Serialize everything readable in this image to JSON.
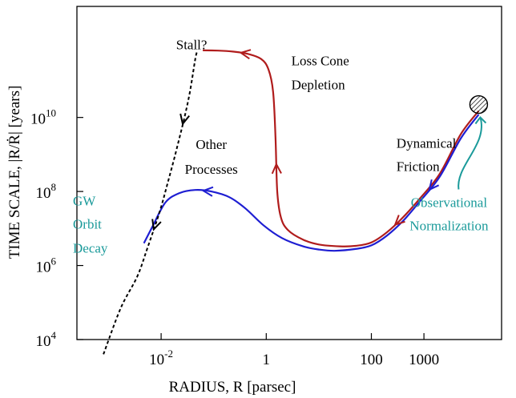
{
  "chart_data": {
    "type": "line",
    "title": "",
    "xlabel": "RADIUS, R  [parsec]",
    "ylabel_prefix": "TIME  SCALE,  |R/",
    "ylabel_rdot": "Ṙ",
    "ylabel_suffix": "|  [years]",
    "x_scale": "log",
    "y_scale": "log",
    "xlim": [
      0.00025,
      30000
    ],
    "ylim": [
      10000,
      10000000000000
    ],
    "x_ticks": [
      {
        "value": 0.01,
        "base": "10",
        "exp": "-2"
      },
      {
        "value": 1,
        "base": "1",
        "exp": ""
      },
      {
        "value": 100,
        "base": "100",
        "exp": ""
      },
      {
        "value": 1000,
        "base": "1000",
        "exp": ""
      }
    ],
    "y_ticks": [
      {
        "value": 10000,
        "base": "10",
        "exp": "4"
      },
      {
        "value": 1000000,
        "base": "10",
        "exp": "6"
      },
      {
        "value": 100000000,
        "base": "10",
        "exp": "8"
      },
      {
        "value": 10000000000,
        "base": "10",
        "exp": "10"
      }
    ],
    "series": [
      {
        "color": "#b01c1c",
        "style": "solid",
        "points": [
          [
            0.062,
            650000000000
          ],
          [
            0.12,
            640000000000
          ],
          [
            0.24,
            600000000000
          ],
          [
            0.45,
            520000000000
          ],
          [
            0.8,
            380000000000
          ],
          [
            1.1,
            200000000000
          ],
          [
            1.35,
            50000000000
          ],
          [
            1.5,
            3000000000
          ],
          [
            1.62,
            100000000
          ],
          [
            1.9,
            20000000
          ],
          [
            2.6,
            9000000
          ],
          [
            5,
            5000000
          ],
          [
            10,
            3700000
          ],
          [
            25,
            3300000
          ],
          [
            50,
            3400000
          ],
          [
            100,
            4200000
          ],
          [
            200,
            8000000
          ],
          [
            400,
            20000000
          ],
          [
            800,
            60000000
          ],
          [
            2000,
            300000000
          ],
          [
            5000,
            3500000000
          ],
          [
            11000,
            15000000000
          ]
        ]
      },
      {
        "color": "#1e1ed2",
        "style": "solid",
        "points": [
          [
            0.0047,
            4000000
          ],
          [
            0.007,
            12000000
          ],
          [
            0.012,
            50000000
          ],
          [
            0.022,
            90000000
          ],
          [
            0.045,
            110000000
          ],
          [
            0.09,
            100000000
          ],
          [
            0.2,
            70000000
          ],
          [
            0.4,
            35000000
          ],
          [
            0.9,
            12000000
          ],
          [
            2,
            5500000
          ],
          [
            5,
            3300000
          ],
          [
            10,
            2700000
          ],
          [
            20,
            2500000
          ],
          [
            50,
            2800000
          ],
          [
            100,
            3500000
          ],
          [
            200,
            6500000
          ],
          [
            400,
            16000000
          ],
          [
            800,
            50000000
          ],
          [
            2000,
            250000000
          ],
          [
            5000,
            2700000000
          ],
          [
            11000,
            12000000000
          ]
        ]
      },
      {
        "color": "#000000",
        "style": "dashed",
        "points": [
          [
            0.0008,
            4000
          ],
          [
            0.0017,
            70000
          ],
          [
            0.0035,
            500000
          ],
          [
            0.0055,
            3000000
          ],
          [
            0.0095,
            30000000
          ],
          [
            0.013,
            150000000
          ],
          [
            0.02,
            1500000000
          ],
          [
            0.033,
            30000000000
          ],
          [
            0.045,
            400000000000
          ],
          [
            0.05,
            650000000000
          ]
        ]
      }
    ],
    "series_annotations": [
      {
        "text": "Stall?",
        "x": 0.038,
        "y": 700000000000,
        "color": "#000000",
        "anchor": "middle"
      },
      {
        "text": "Loss Cone",
        "x": 3.0,
        "y": 260000000000,
        "color": "#000000",
        "anchor": "start"
      },
      {
        "text": "Depletion",
        "x": 3.0,
        "y": 57000000000,
        "color": "#000000",
        "anchor": "start"
      },
      {
        "text": "Other",
        "x": 0.09,
        "y": 1400000000,
        "color": "#000000",
        "anchor": "middle"
      },
      {
        "text": "Processes",
        "x": 0.09,
        "y": 300000000,
        "color": "#000000",
        "anchor": "middle"
      },
      {
        "text": "Dynamical",
        "x": 300,
        "y": 1500000000,
        "color": "#000000",
        "anchor": "start"
      },
      {
        "text": "Friction",
        "x": 300,
        "y": 360000000,
        "color": "#000000",
        "anchor": "start"
      },
      {
        "text": "GW",
        "x": 0.00021,
        "y": 42000000,
        "color": "#1a9a9a",
        "anchor": "start"
      },
      {
        "text": "Orbit",
        "x": 0.00021,
        "y": 10000000,
        "color": "#1a9a9a",
        "anchor": "start"
      },
      {
        "text": "Decay",
        "x": 0.00021,
        "y": 2200000,
        "color": "#1a9a9a",
        "anchor": "start"
      },
      {
        "text": "Observational",
        "x": 3000,
        "y": 38000000,
        "color": "#1a9a9a",
        "anchor": "middle"
      },
      {
        "text": "Normalization",
        "x": 3000,
        "y": 9000000,
        "color": "#1a9a9a",
        "anchor": "middle"
      }
    ],
    "colors": {
      "red": "#b01c1c",
      "blue": "#1e1ed2",
      "teal": "#1a9a9a",
      "axis": "#000000"
    }
  }
}
